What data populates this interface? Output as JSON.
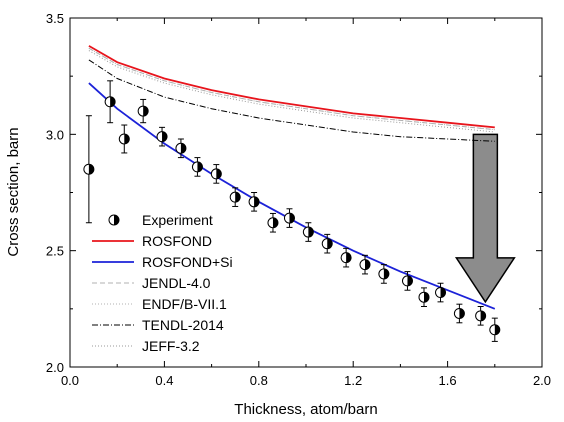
{
  "chart_data": {
    "type": "line",
    "xlabel": "Thickness, atom/barn",
    "ylabel": "Cross section, barn",
    "xlim": [
      0.0,
      2.0
    ],
    "ylim": [
      2.0,
      3.5
    ],
    "xticks": [
      "0.0",
      "0.4",
      "0.8",
      "1.2",
      "1.6",
      "2.0"
    ],
    "xtick_values": [
      0.0,
      0.4,
      0.8,
      1.2,
      1.6,
      2.0
    ],
    "yticks": [
      "2.0",
      "2.5",
      "3.0",
      "3.5"
    ],
    "ytick_values": [
      2.0,
      2.5,
      3.0,
      3.5
    ],
    "grid": false,
    "legend_position": "bottom-left",
    "series": [
      {
        "name": "Experiment",
        "kind": "errorbar-points",
        "color": "#000000",
        "x": [
          0.08,
          0.17,
          0.23,
          0.31,
          0.39,
          0.47,
          0.54,
          0.62,
          0.7,
          0.78,
          0.86,
          0.93,
          1.01,
          1.09,
          1.17,
          1.25,
          1.33,
          1.43,
          1.5,
          1.57,
          1.65,
          1.74,
          1.8
        ],
        "y": [
          2.85,
          3.14,
          2.98,
          3.1,
          2.99,
          2.94,
          2.86,
          2.83,
          2.73,
          2.71,
          2.62,
          2.64,
          2.58,
          2.53,
          2.47,
          2.44,
          2.4,
          2.37,
          2.3,
          2.32,
          2.23,
          2.22,
          2.16
        ],
        "yerr": [
          0.23,
          0.09,
          0.06,
          0.05,
          0.04,
          0.04,
          0.04,
          0.04,
          0.04,
          0.04,
          0.04,
          0.04,
          0.04,
          0.04,
          0.04,
          0.04,
          0.04,
          0.04,
          0.04,
          0.04,
          0.04,
          0.04,
          0.05
        ]
      },
      {
        "name": "ROSFOND",
        "kind": "line",
        "color": "#e8141c",
        "dash": "",
        "width": 1.8,
        "x": [
          0.08,
          0.2,
          0.4,
          0.6,
          0.8,
          1.0,
          1.2,
          1.4,
          1.6,
          1.8
        ],
        "y": [
          3.38,
          3.31,
          3.24,
          3.19,
          3.15,
          3.12,
          3.09,
          3.07,
          3.05,
          3.03
        ]
      },
      {
        "name": "ROSFOND+Si",
        "kind": "line",
        "color": "#1c22d8",
        "dash": "",
        "width": 1.8,
        "x": [
          0.08,
          0.2,
          0.4,
          0.6,
          0.8,
          1.0,
          1.2,
          1.4,
          1.6,
          1.8
        ],
        "y": [
          3.22,
          3.11,
          2.96,
          2.83,
          2.71,
          2.6,
          2.5,
          2.41,
          2.33,
          2.25
        ]
      },
      {
        "name": "JENDL-4.0",
        "kind": "line",
        "color": "#b0b0b0",
        "dash": "5,3",
        "width": 1,
        "x": [
          0.08,
          0.2,
          0.4,
          0.6,
          0.8,
          1.0,
          1.2,
          1.4,
          1.6,
          1.8
        ],
        "y": [
          3.37,
          3.3,
          3.23,
          3.18,
          3.14,
          3.11,
          3.08,
          3.06,
          3.04,
          3.02
        ]
      },
      {
        "name": "ENDF/B-VII.1",
        "kind": "line",
        "color": "#b0b0b0",
        "dash": "1,2",
        "width": 1,
        "x": [
          0.08,
          0.2,
          0.4,
          0.6,
          0.8,
          1.0,
          1.2,
          1.4,
          1.6,
          1.8
        ],
        "y": [
          3.37,
          3.3,
          3.23,
          3.18,
          3.14,
          3.11,
          3.08,
          3.06,
          3.04,
          3.02
        ]
      },
      {
        "name": "TENDL-2014",
        "kind": "line",
        "color": "#000000",
        "dash": "6,2,1,2",
        "width": 1,
        "x": [
          0.08,
          0.2,
          0.4,
          0.6,
          0.8,
          1.0,
          1.2,
          1.4,
          1.6,
          1.8
        ],
        "y": [
          3.32,
          3.24,
          3.16,
          3.11,
          3.07,
          3.04,
          3.01,
          2.99,
          2.98,
          2.97
        ]
      },
      {
        "name": "JEFF-3.2",
        "kind": "line",
        "color": "#9a9a9a",
        "dash": "1,2",
        "width": 1,
        "x": [
          0.08,
          0.2,
          0.4,
          0.6,
          0.8,
          1.0,
          1.2,
          1.4,
          1.6,
          1.8
        ],
        "y": [
          3.36,
          3.29,
          3.22,
          3.17,
          3.13,
          3.1,
          3.07,
          3.05,
          3.03,
          3.01
        ]
      }
    ],
    "annotation": {
      "type": "arrow",
      "direction": "down",
      "color": "#8c8c8c",
      "x": 1.76,
      "from_y": 3.0,
      "to_y": 2.28
    }
  }
}
